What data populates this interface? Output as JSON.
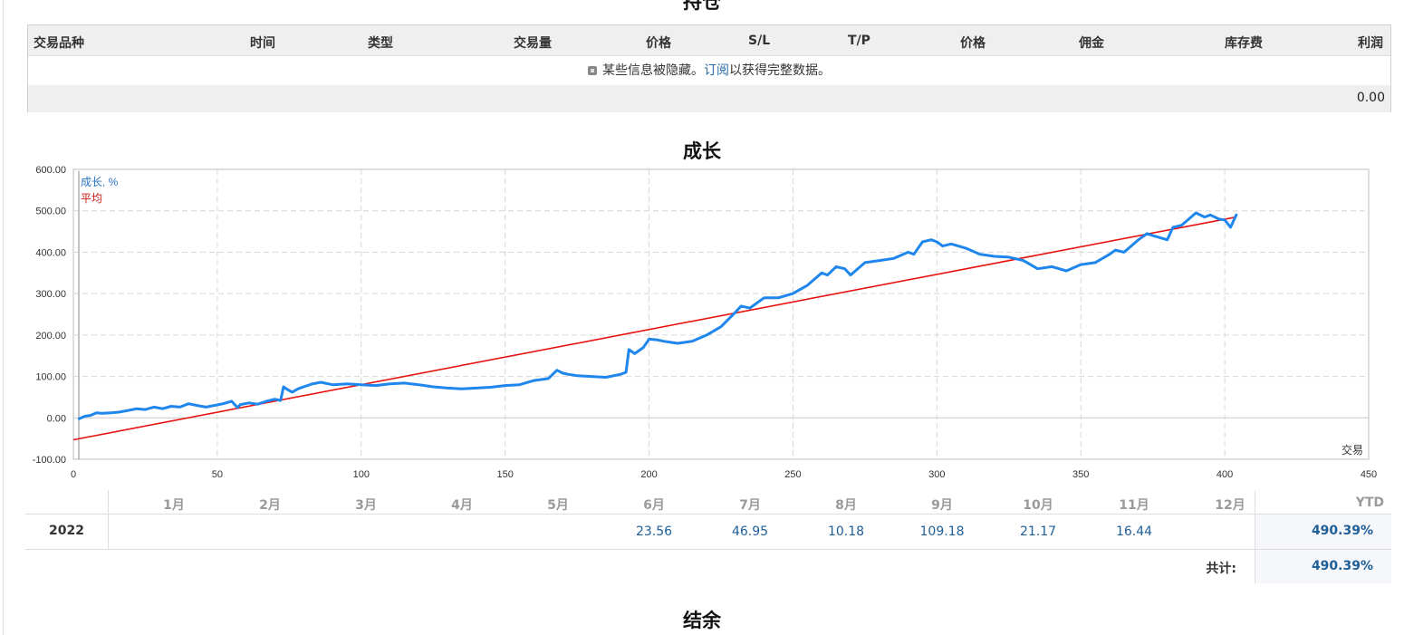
{
  "sections": {
    "positions_title": "持仓",
    "growth_title": "成长",
    "balance_title": "结余"
  },
  "positions": {
    "columns": [
      "交易品种",
      "时间",
      "类型",
      "交易量",
      "价格",
      "S/L",
      "T/P",
      "价格",
      "佣金",
      "库存费",
      "利润"
    ],
    "notice_before": "某些信息被隐藏。",
    "notice_link": "订阅",
    "notice_after": "以获得完整数据。",
    "total_profit": "0.00"
  },
  "colors": {
    "growth_line": "#1e86ec",
    "average_line": "#e8130f",
    "legend_growth": "#2a74c8",
    "legend_average": "#cc1a10",
    "grid": "#d6d6d6"
  },
  "chart_data": {
    "type": "line",
    "title": "成长",
    "xlabel": "交易",
    "ylabel": "",
    "xlim": [
      0,
      450
    ],
    "ylim": [
      -100,
      600
    ],
    "x_ticks": [
      0,
      50,
      100,
      150,
      200,
      250,
      300,
      350,
      400,
      450
    ],
    "x_tick_labels": [
      "0",
      "50",
      "100",
      "150",
      "200",
      "250",
      "300",
      "350",
      "400",
      "450"
    ],
    "y_ticks": [
      -100,
      0,
      100,
      200,
      300,
      400,
      500,
      600
    ],
    "y_tick_labels": [
      "-100.00",
      "0.00",
      "100.00",
      "200.00",
      "300.00",
      "400.00",
      "500.00",
      "600.00"
    ],
    "grid": true,
    "legend_position": "top-left",
    "series": [
      {
        "name": "成长, %",
        "x": [
          2,
          4,
          6,
          8,
          10,
          13,
          16,
          19,
          22,
          25,
          28,
          31,
          34,
          37,
          40,
          43,
          46,
          49,
          52,
          55,
          57,
          58,
          61,
          64,
          67,
          70,
          72,
          73,
          74,
          76,
          78,
          80,
          83,
          86,
          90,
          95,
          100,
          105,
          110,
          115,
          120,
          125,
          130,
          135,
          140,
          145,
          150,
          155,
          160,
          165,
          168,
          170,
          172,
          175,
          180,
          185,
          190,
          192,
          193,
          195,
          198,
          200,
          203,
          205,
          210,
          215,
          220,
          225,
          230,
          232,
          235,
          240,
          245,
          250,
          255,
          260,
          262,
          265,
          268,
          270,
          275,
          280,
          285,
          290,
          292,
          295,
          298,
          300,
          302,
          305,
          310,
          315,
          320,
          325,
          330,
          335,
          340,
          345,
          350,
          355,
          360,
          362,
          365,
          370,
          373,
          375,
          380,
          382,
          385,
          390,
          393,
          395,
          398,
          400,
          402,
          404
        ],
        "y": [
          -2,
          4,
          6,
          12,
          11,
          12,
          14,
          18,
          22,
          20,
          26,
          22,
          28,
          26,
          34,
          30,
          26,
          30,
          34,
          40,
          25,
          32,
          36,
          33,
          40,
          45,
          42,
          75,
          70,
          62,
          70,
          75,
          82,
          86,
          80,
          82,
          80,
          78,
          82,
          84,
          80,
          75,
          72,
          70,
          72,
          74,
          78,
          80,
          90,
          95,
          115,
          108,
          105,
          102,
          100,
          98,
          105,
          110,
          165,
          155,
          170,
          190,
          188,
          185,
          180,
          185,
          200,
          220,
          255,
          270,
          265,
          290,
          290,
          300,
          320,
          350,
          345,
          365,
          360,
          345,
          375,
          380,
          385,
          400,
          395,
          425,
          430,
          425,
          415,
          420,
          410,
          395,
          390,
          388,
          380,
          360,
          365,
          355,
          370,
          375,
          395,
          405,
          400,
          430,
          445,
          440,
          430,
          460,
          465,
          495,
          485,
          490,
          480,
          478,
          460,
          490
        ]
      },
      {
        "name": "平均",
        "x": [
          0,
          404
        ],
        "y": [
          -53,
          485
        ]
      }
    ]
  },
  "monthly": {
    "months": [
      "1月",
      "2月",
      "3月",
      "4月",
      "5月",
      "6月",
      "7月",
      "8月",
      "9月",
      "10月",
      "11月",
      "12月"
    ],
    "ytd_label": "YTD",
    "year": "2022",
    "values": [
      "",
      "",
      "",
      "",
      "",
      "23.56",
      "46.95",
      "10.18",
      "109.18",
      "21.17",
      "16.44",
      ""
    ],
    "ytd_value": "490.39%",
    "total_label": "共计:",
    "total_value": "490.39%"
  }
}
